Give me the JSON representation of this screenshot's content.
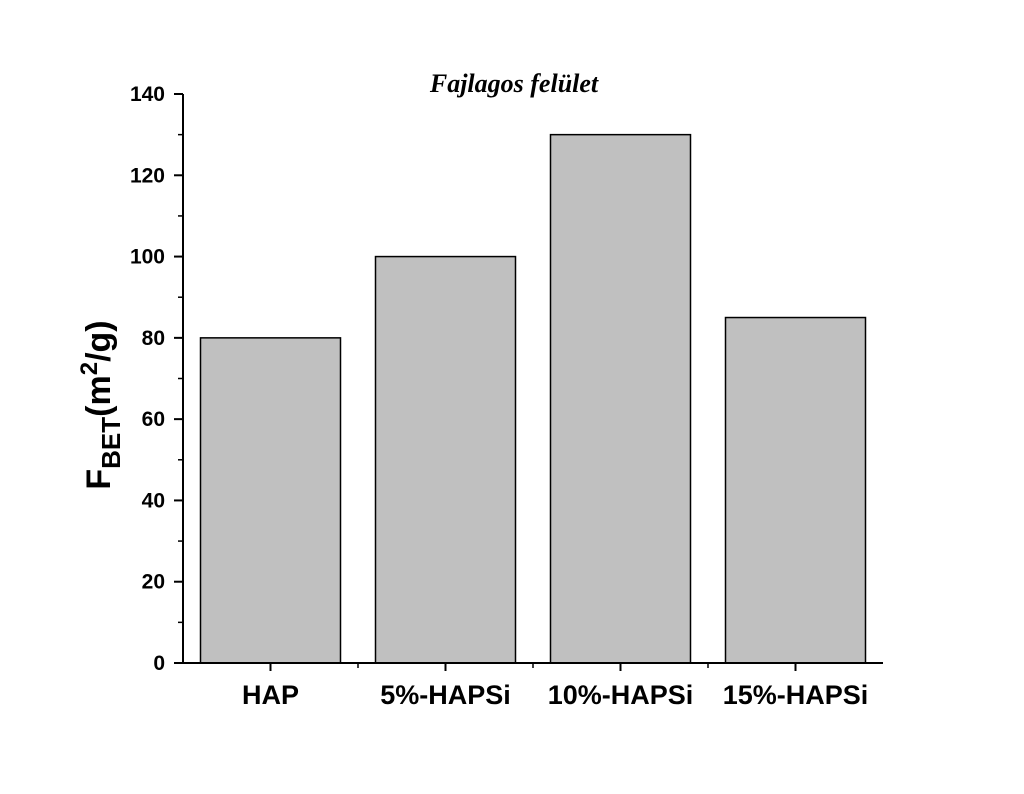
{
  "chart_data": {
    "type": "bar",
    "title": "Fajlagos felület",
    "categories": [
      "HAP",
      "5%-HAPSi",
      "10%-HAPSi",
      "15%-HAPSi"
    ],
    "values": [
      80,
      100,
      130,
      85
    ],
    "ylabel": {
      "main": "F",
      "subscript": "BET",
      "unit_open": "(m",
      "superscript": "2",
      "unit_close": "/g)"
    },
    "xlabel": "",
    "ylim": [
      0,
      140
    ],
    "yticks": [
      0,
      20,
      40,
      60,
      80,
      100,
      120,
      140
    ],
    "grid": false,
    "bar_color": "#c0c0c0",
    "bar_edge_color": "#000000"
  }
}
